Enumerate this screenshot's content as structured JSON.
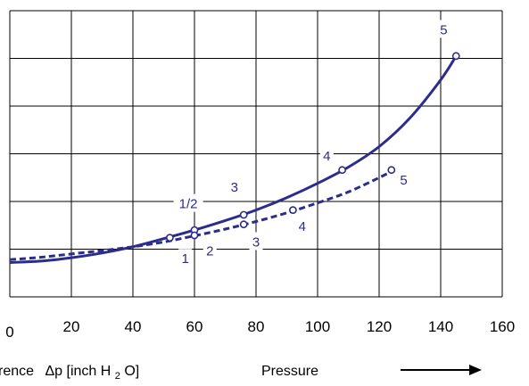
{
  "chart_data": {
    "type": "line",
    "xlim": [
      0,
      160
    ],
    "xticks": [
      0,
      20,
      40,
      60,
      80,
      100,
      120,
      140,
      160
    ],
    "ylim": [
      0,
      6
    ],
    "grid": true,
    "xlabel_prefix": "rence",
    "xlabel_delta": "Δp",
    "xlabel_main": " [inch H",
    "xlabel_sub": "2",
    "xlabel_tail": "O]",
    "footer_label": "Pressure",
    "series": [
      {
        "style": "solid",
        "color": "#2b2c8c",
        "x": [
          0,
          10,
          20,
          30,
          40,
          50,
          60,
          70,
          80,
          90,
          100,
          110,
          120,
          130,
          140,
          145
        ],
        "y": [
          0.72,
          0.75,
          0.82,
          0.92,
          1.05,
          1.22,
          1.4,
          1.6,
          1.82,
          2.08,
          2.38,
          2.72,
          3.15,
          3.75,
          4.55,
          5.05
        ]
      },
      {
        "style": "dashed",
        "color": "#2b2c8c",
        "x": [
          0,
          10,
          20,
          30,
          40,
          50,
          60,
          70,
          80,
          90,
          100,
          110,
          120,
          125
        ],
        "y": [
          0.78,
          0.83,
          0.9,
          0.97,
          1.05,
          1.15,
          1.28,
          1.42,
          1.58,
          1.76,
          1.97,
          2.2,
          2.5,
          2.66
        ]
      }
    ],
    "points": [
      {
        "series": 0,
        "x": 52,
        "y": 1.24
      },
      {
        "series": 0,
        "x": 60,
        "y": 1.4
      },
      {
        "series": 0,
        "x": 76,
        "y": 1.72
      },
      {
        "series": 0,
        "x": 108,
        "y": 2.66
      },
      {
        "series": 0,
        "x": 145,
        "y": 5.05
      },
      {
        "series": 1,
        "x": 60,
        "y": 1.29
      },
      {
        "series": 1,
        "x": 76,
        "y": 1.52
      },
      {
        "series": 1,
        "x": 92,
        "y": 1.82
      },
      {
        "series": 1,
        "x": 124,
        "y": 2.66
      }
    ],
    "point_labels": [
      {
        "text": "1",
        "x": 57,
        "y": 0.8
      },
      {
        "text": "1/2",
        "x": 58,
        "y": 1.95
      },
      {
        "text": "2",
        "x": 65,
        "y": 0.96
      },
      {
        "text": "3",
        "x": 73,
        "y": 2.3
      },
      {
        "text": "3",
        "x": 80,
        "y": 1.15
      },
      {
        "text": "4",
        "x": 103,
        "y": 2.95
      },
      {
        "text": "4",
        "x": 95,
        "y": 1.48
      },
      {
        "text": "5",
        "x": 141,
        "y": 5.6
      },
      {
        "text": "5",
        "x": 128,
        "y": 2.45
      }
    ]
  }
}
